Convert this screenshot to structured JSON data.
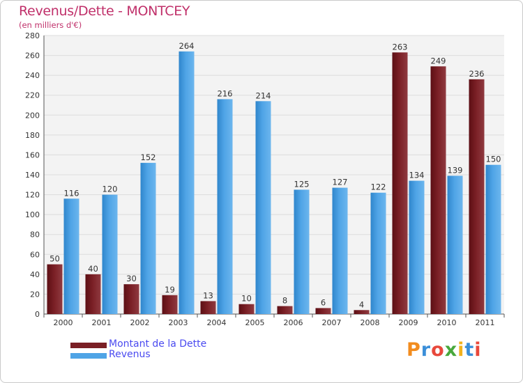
{
  "title": "Revenus/Dette - MONTCEY",
  "subtitle": "(en milliers d'€)",
  "logo": "Proxiti",
  "colors": {
    "dette": "#7a1f25",
    "revenus": "#4fa4e6",
    "title": "#c0306a",
    "legend_text": "#4a4af0"
  },
  "chart_data": {
    "type": "bar",
    "categories": [
      "2000",
      "2001",
      "2002",
      "2003",
      "2004",
      "2005",
      "2006",
      "2007",
      "2008",
      "2009",
      "2010",
      "2011"
    ],
    "series": [
      {
        "name": "Montant de la Dette",
        "values": [
          50,
          40,
          30,
          19,
          13,
          10,
          8,
          6,
          4,
          263,
          249,
          236
        ]
      },
      {
        "name": "Revenus",
        "values": [
          116,
          120,
          152,
          264,
          216,
          214,
          125,
          127,
          122,
          134,
          139,
          150
        ]
      }
    ],
    "ylim": [
      0,
      280
    ],
    "yticks": [
      0,
      20,
      40,
      60,
      80,
      100,
      120,
      140,
      160,
      180,
      200,
      220,
      240,
      260,
      280
    ],
    "grid": true,
    "legend": "bottom-left"
  }
}
